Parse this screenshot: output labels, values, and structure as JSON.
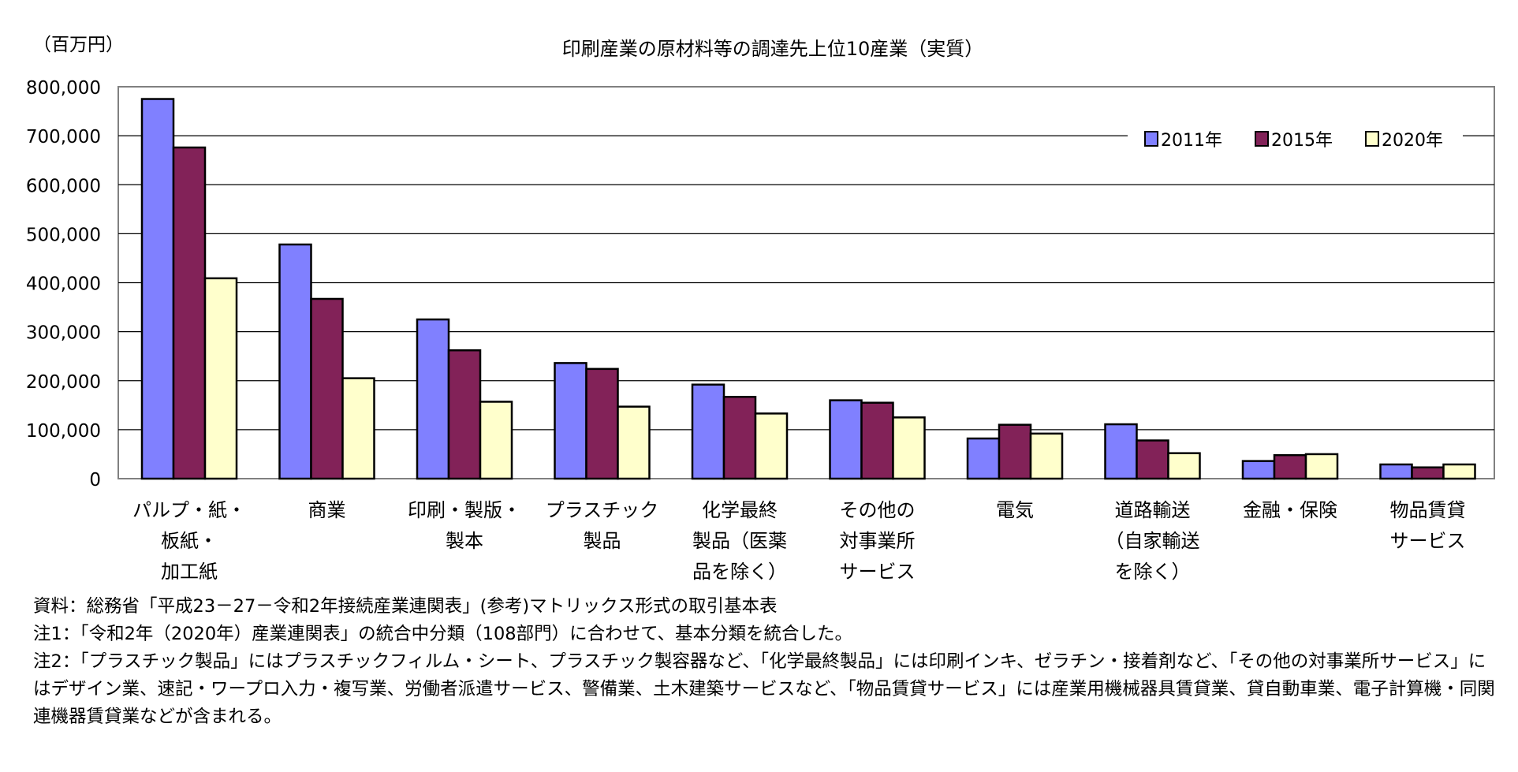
{
  "chart_data": {
    "type": "bar",
    "title": "印刷産業の原材料等の調達先上位10産業（実質）",
    "unit_label": "（百万円）",
    "categories": [
      [
        "パルプ・紙・",
        "板紙・",
        "加工紙"
      ],
      [
        "商業"
      ],
      [
        "印刷・製版・",
        "製本"
      ],
      [
        "プラスチック",
        "製品"
      ],
      [
        "化学最終",
        "製品（医薬",
        "品を除く）"
      ],
      [
        "その他の",
        "対事業所",
        "サービス"
      ],
      [
        "電気"
      ],
      [
        "道路輸送",
        "（自家輸送",
        "を除く）"
      ],
      [
        "金融・保険"
      ],
      [
        "物品賃貸",
        "サービス"
      ]
    ],
    "series": [
      {
        "name": "2011年",
        "color": "#8080ff",
        "values": [
          775000,
          478000,
          325000,
          236000,
          192000,
          160000,
          82000,
          111000,
          36000,
          29000
        ]
      },
      {
        "name": "2015年",
        "color": "#822258",
        "values": [
          676000,
          367000,
          262000,
          224000,
          167000,
          155000,
          110000,
          78000,
          48000,
          23000
        ]
      },
      {
        "name": "2020年",
        "color": "#ffffcc",
        "values": [
          409000,
          205000,
          157000,
          147000,
          133000,
          125000,
          92000,
          52000,
          50000,
          29000
        ]
      }
    ],
    "ylim": [
      0,
      800000
    ],
    "yticks": [
      "0",
      "100,000",
      "200,000",
      "300,000",
      "400,000",
      "500,000",
      "600,000",
      "700,000",
      "800,000"
    ],
    "grid": true,
    "legend_position": "top-right"
  },
  "notes": [
    "資料：総務省「平成23－27－令和2年接続産業連関表」(参考)マトリックス形式の取引基本表",
    "注1：「令和2年（2020年）産業連関表」の統合中分類（108部門）に合わせて、基本分類を統合した。",
    "注2：「プラスチック製品」にはプラスチックフィルム・シート、プラスチック製容器など、「化学最終製品」には印刷インキ、ゼラチン・接着剤など、「その他の対事業所サービス」にはデザイン業、速記・ワープロ入力・複写業、労働者派遣サービス、警備業、土木建築サービスなど、「物品賃貸サービス」には産業用機械器具賃貸業、貸自動車業、電子計算機・同関連機器賃貸業などが含まれる。"
  ]
}
